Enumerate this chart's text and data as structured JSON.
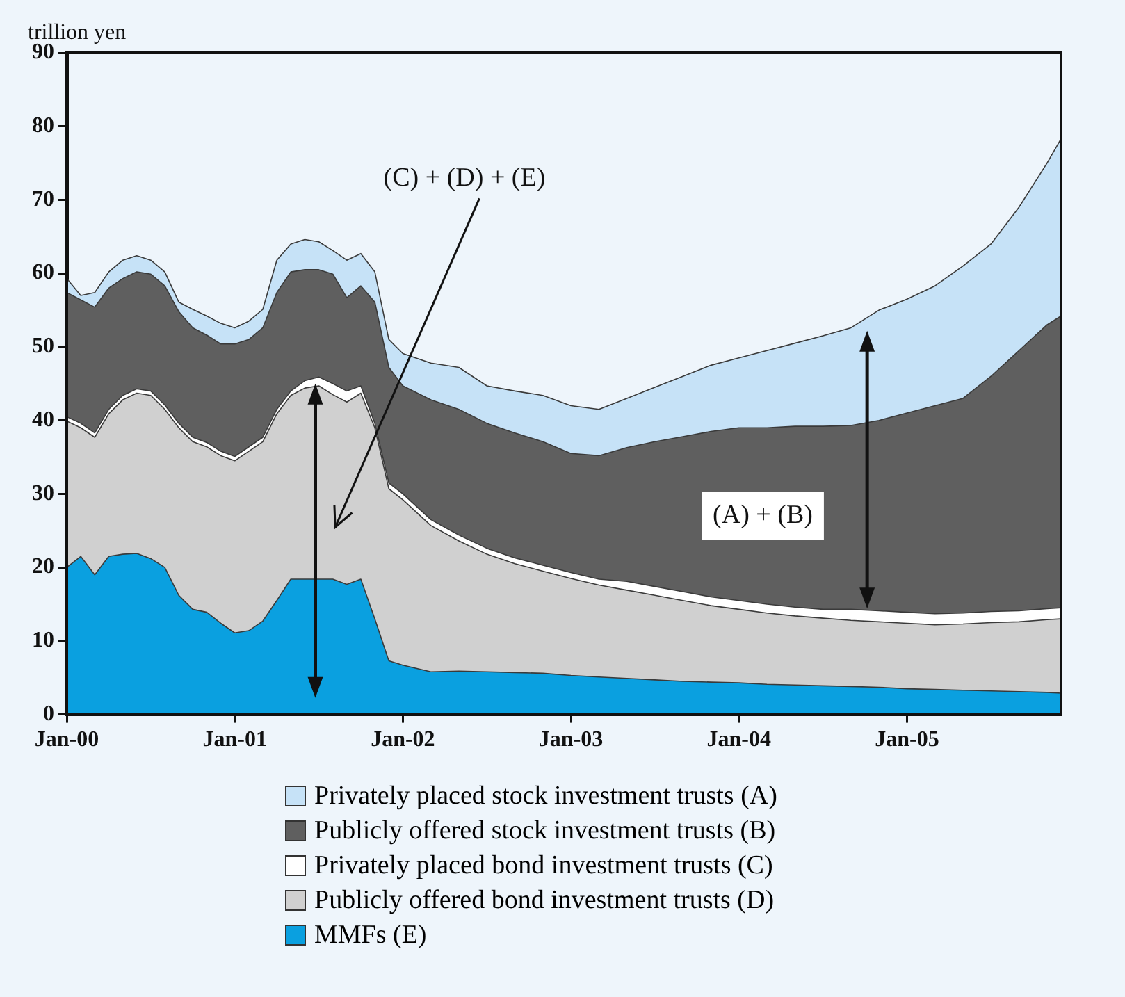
{
  "chart_data": {
    "type": "area",
    "stacked": true,
    "ylabel": "trillion yen",
    "x": [
      "2000-01",
      "2000-02",
      "2000-03",
      "2000-04",
      "2000-05",
      "2000-06",
      "2000-07",
      "2000-08",
      "2000-09",
      "2000-10",
      "2000-11",
      "2000-12",
      "2001-01",
      "2001-02",
      "2001-03",
      "2001-04",
      "2001-05",
      "2001-06",
      "2001-07",
      "2001-08",
      "2001-09",
      "2001-10",
      "2001-11",
      "2001-12",
      "2002-01",
      "2002-03",
      "2002-05",
      "2002-07",
      "2002-09",
      "2002-11",
      "2003-01",
      "2003-03",
      "2003-05",
      "2003-07",
      "2003-09",
      "2003-11",
      "2004-01",
      "2004-03",
      "2004-05",
      "2004-07",
      "2004-09",
      "2004-11",
      "2005-01",
      "2005-03",
      "2005-05",
      "2005-07",
      "2005-09",
      "2005-11",
      "2005-12"
    ],
    "series": [
      {
        "name": "MMFs (E)",
        "color": "#0aa0e0",
        "values": [
          20,
          21.5,
          19,
          21.5,
          21.8,
          21.9,
          21.2,
          20,
          16.2,
          14.3,
          13.9,
          12.4,
          11.1,
          11.4,
          12.7,
          15.5,
          18.4,
          18.4,
          18.4,
          18.4,
          17.7,
          18.4,
          13,
          7.3,
          6.7,
          5.8,
          5.9,
          5.8,
          5.7,
          5.6,
          5.3,
          5.1,
          4.9,
          4.7,
          4.5,
          4.4,
          4.3,
          4.1,
          4,
          3.9,
          3.8,
          3.7,
          3.5,
          3.4,
          3.3,
          3.2,
          3.1,
          3,
          2.9
        ]
      },
      {
        "name": "Publicly offered bond investment trusts (D)",
        "color": "#d0d0d0",
        "values": [
          19.9,
          17.5,
          18.7,
          19.4,
          21,
          21.8,
          22.2,
          21.5,
          22.8,
          22.8,
          22.5,
          22.8,
          23.4,
          24.4,
          24.4,
          25.4,
          25,
          26,
          26.3,
          25.1,
          24.8,
          25.3,
          26,
          23.4,
          22.5,
          19.9,
          17.7,
          16,
          14.8,
          13.9,
          13.2,
          12.5,
          12,
          11.5,
          11,
          10.4,
          10,
          9.7,
          9.4,
          9.2,
          9,
          8.9,
          8.9,
          8.8,
          9,
          9.3,
          9.5,
          9.9,
          10.1
        ]
      },
      {
        "name": "Privately placed bond investment trusts (C)",
        "color": "#ffffff",
        "values": [
          0.6,
          0.6,
          0.6,
          0.6,
          0.6,
          0.6,
          0.6,
          0.6,
          0.6,
          0.6,
          0.6,
          0.6,
          0.6,
          0.6,
          0.6,
          0.6,
          0.6,
          1,
          1.2,
          1.5,
          1.5,
          1,
          0.6,
          0.8,
          0.8,
          0.8,
          0.8,
          0.8,
          0.8,
          0.8,
          0.8,
          0.8,
          1.2,
          1.2,
          1.2,
          1.2,
          1.2,
          1.2,
          1.2,
          1.2,
          1.5,
          1.5,
          1.5,
          1.5,
          1.5,
          1.5,
          1.5,
          1.5,
          1.5
        ]
      },
      {
        "name": "Publicly offered stock investment trusts (B)",
        "color": "#5f5f5f",
        "values": [
          16.9,
          16.8,
          17.1,
          16.5,
          15.9,
          15.9,
          15.9,
          16.2,
          15.2,
          14.9,
          14.6,
          14.6,
          15.3,
          14.6,
          14.9,
          15.9,
          16.2,
          15.1,
          14.6,
          14.9,
          12.7,
          13.6,
          16.5,
          15.7,
          14.7,
          16.3,
          17.1,
          17,
          17,
          16.8,
          16.2,
          16.8,
          18.2,
          19.7,
          21.1,
          22.5,
          23.5,
          24,
          24.6,
          24.9,
          25,
          25.9,
          27.1,
          28.3,
          29.2,
          32,
          35.4,
          38.6,
          39.7
        ]
      },
      {
        "name": "Privately placed stock investment trusts (A)",
        "color": "#c6e2f7",
        "values": [
          1.9,
          0.6,
          2,
          2.2,
          2.5,
          2.2,
          1.9,
          1.9,
          1.3,
          2.5,
          2.6,
          2.8,
          2.2,
          2.5,
          2.5,
          4.4,
          3.8,
          4.1,
          3.8,
          3.2,
          5.1,
          4.4,
          4.1,
          3.8,
          4.4,
          5,
          5.7,
          5.1,
          5.7,
          6.3,
          6.5,
          6.3,
          6.7,
          7.4,
          8.2,
          9,
          9.5,
          10.5,
          11.3,
          12.3,
          13.3,
          15,
          15.5,
          16.3,
          18,
          18,
          19.5,
          22,
          24.1
        ]
      }
    ],
    "xlim": [
      "2000-01",
      "2005-12"
    ],
    "xticks": [
      {
        "value": "2000-01",
        "label": "Jan-00"
      },
      {
        "value": "2001-01",
        "label": "Jan-01"
      },
      {
        "value": "2002-01",
        "label": "Jan-02"
      },
      {
        "value": "2003-01",
        "label": "Jan-03"
      },
      {
        "value": "2004-01",
        "label": "Jan-04"
      },
      {
        "value": "2005-01",
        "label": "Jan-05"
      }
    ],
    "ylim": [
      0,
      90
    ],
    "yticks": [
      0,
      10,
      20,
      30,
      40,
      50,
      60,
      70,
      80,
      90
    ],
    "grid": false,
    "legend": "bottom",
    "marker": "none",
    "annotations": [
      "(C) + (D) + (E)",
      "(A) + (B)"
    ]
  }
}
